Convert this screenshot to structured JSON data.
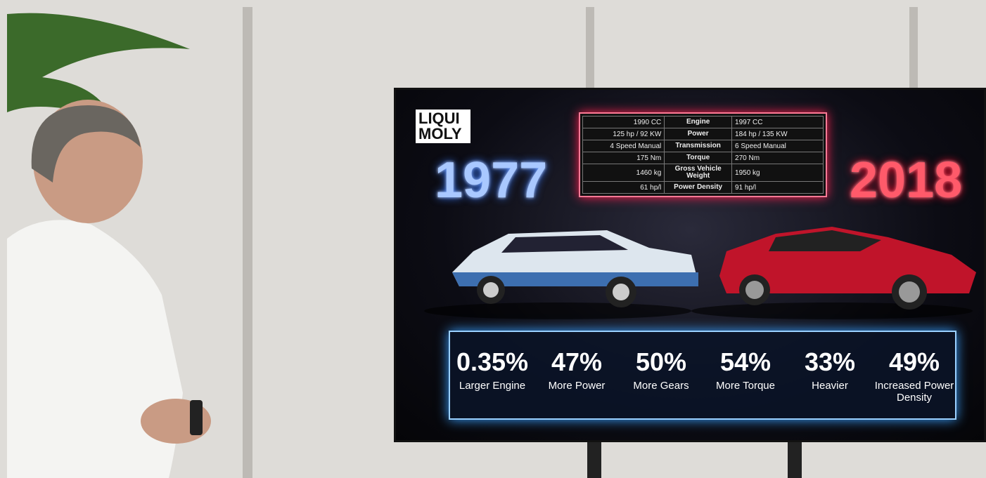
{
  "logo": {
    "line1": "LIQUI",
    "line2": "MOLY"
  },
  "years": {
    "left": "1977",
    "right": "2018"
  },
  "table": {
    "rows": [
      [
        "1990 CC",
        "Engine",
        "1997 CC"
      ],
      [
        "125 hp / 92 KW",
        "Power",
        "184 hp / 135 KW"
      ],
      [
        "4 Speed Manual",
        "Transmission",
        "6 Speed Manual"
      ],
      [
        "175 Nm",
        "Torque",
        "270 Nm"
      ],
      [
        "1460 kg",
        "Gross Vehicle Weight",
        "1950 kg"
      ],
      [
        "61 hp/l",
        "Power Density",
        "91 hp/l"
      ]
    ]
  },
  "stats": [
    {
      "value": "0.35%",
      "label": "Larger Engine"
    },
    {
      "value": "47%",
      "label": "More Power"
    },
    {
      "value": "50%",
      "label": "More Gears"
    },
    {
      "value": "54%",
      "label": "More Torque"
    },
    {
      "value": "33%",
      "label": "Heavier"
    },
    {
      "value": "49%",
      "label": "Increased Power Density"
    }
  ]
}
